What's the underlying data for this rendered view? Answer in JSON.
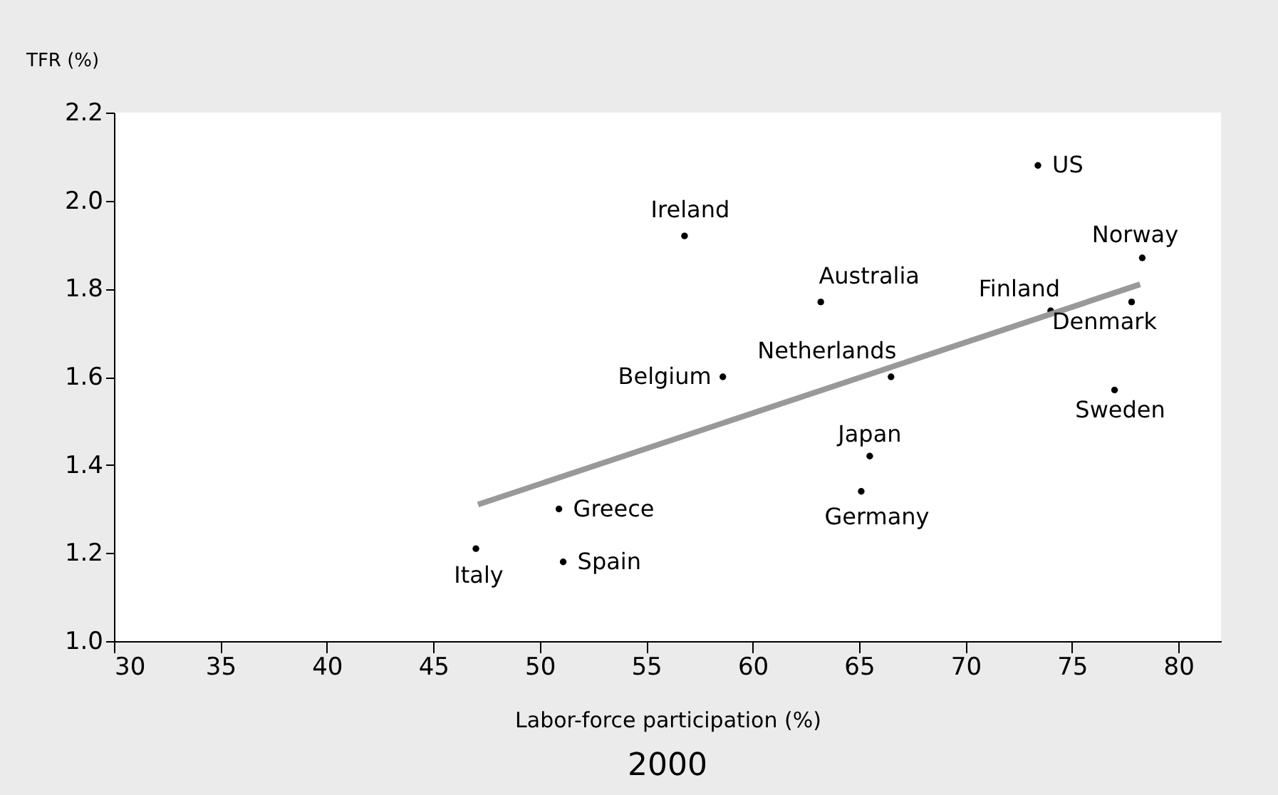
{
  "chart_data": {
    "type": "scatter",
    "title": "2000",
    "xlabel": "Labor-force participation (%)",
    "ylabel": "TFR (%)",
    "xlim": [
      30,
      82
    ],
    "ylim": [
      1.0,
      2.2
    ],
    "xticks": [
      30,
      35,
      40,
      45,
      50,
      55,
      60,
      65,
      70,
      75,
      80
    ],
    "yticks": [
      {
        "value": 1.0,
        "label": "1.0"
      },
      1.2,
      1.4,
      1.6,
      1.8,
      {
        "value": 2.0,
        "label": "2.0"
      },
      2.2
    ],
    "grid": false,
    "series": [
      {
        "marker": "circle",
        "color": "#000000",
        "x": [
          73.4,
          56.8,
          78.3,
          63.2,
          74.0,
          77.8,
          58.6,
          66.5,
          77.0,
          65.5,
          65.1,
          50.9,
          51.1,
          47.0
        ],
        "values": [
          2.08,
          1.92,
          1.87,
          1.77,
          1.75,
          1.77,
          1.6,
          1.6,
          1.57,
          1.42,
          1.34,
          1.3,
          1.18,
          1.21
        ]
      },
      {
        "type": "line",
        "color": "#999999",
        "line_style": "solid",
        "x": [
          47.1,
          78.2
        ],
        "values": [
          1.31,
          1.81
        ]
      }
    ],
    "annotations": [
      {
        "text": "US",
        "x": 73.4,
        "y": 2.08
      },
      {
        "text": "Ireland",
        "x": 56.8,
        "y": 1.92
      },
      {
        "text": "Norway",
        "x": 78.3,
        "y": 1.87
      },
      {
        "text": "Australia",
        "x": 63.2,
        "y": 1.77
      },
      {
        "text": "Finland",
        "x": 74.0,
        "y": 1.75
      },
      {
        "text": "Denmark",
        "x": 77.8,
        "y": 1.77
      },
      {
        "text": "Belgium",
        "x": 58.6,
        "y": 1.6
      },
      {
        "text": "Netherlands",
        "x": 66.5,
        "y": 1.6
      },
      {
        "text": "Sweden",
        "x": 77.0,
        "y": 1.57
      },
      {
        "text": "Japan",
        "x": 65.5,
        "y": 1.42
      },
      {
        "text": "Germany",
        "x": 65.1,
        "y": 1.34
      },
      {
        "text": "Greece",
        "x": 50.9,
        "y": 1.3
      },
      {
        "text": "Spain",
        "x": 51.1,
        "y": 1.18
      },
      {
        "text": "Italy",
        "x": 47.0,
        "y": 1.21
      }
    ]
  }
}
